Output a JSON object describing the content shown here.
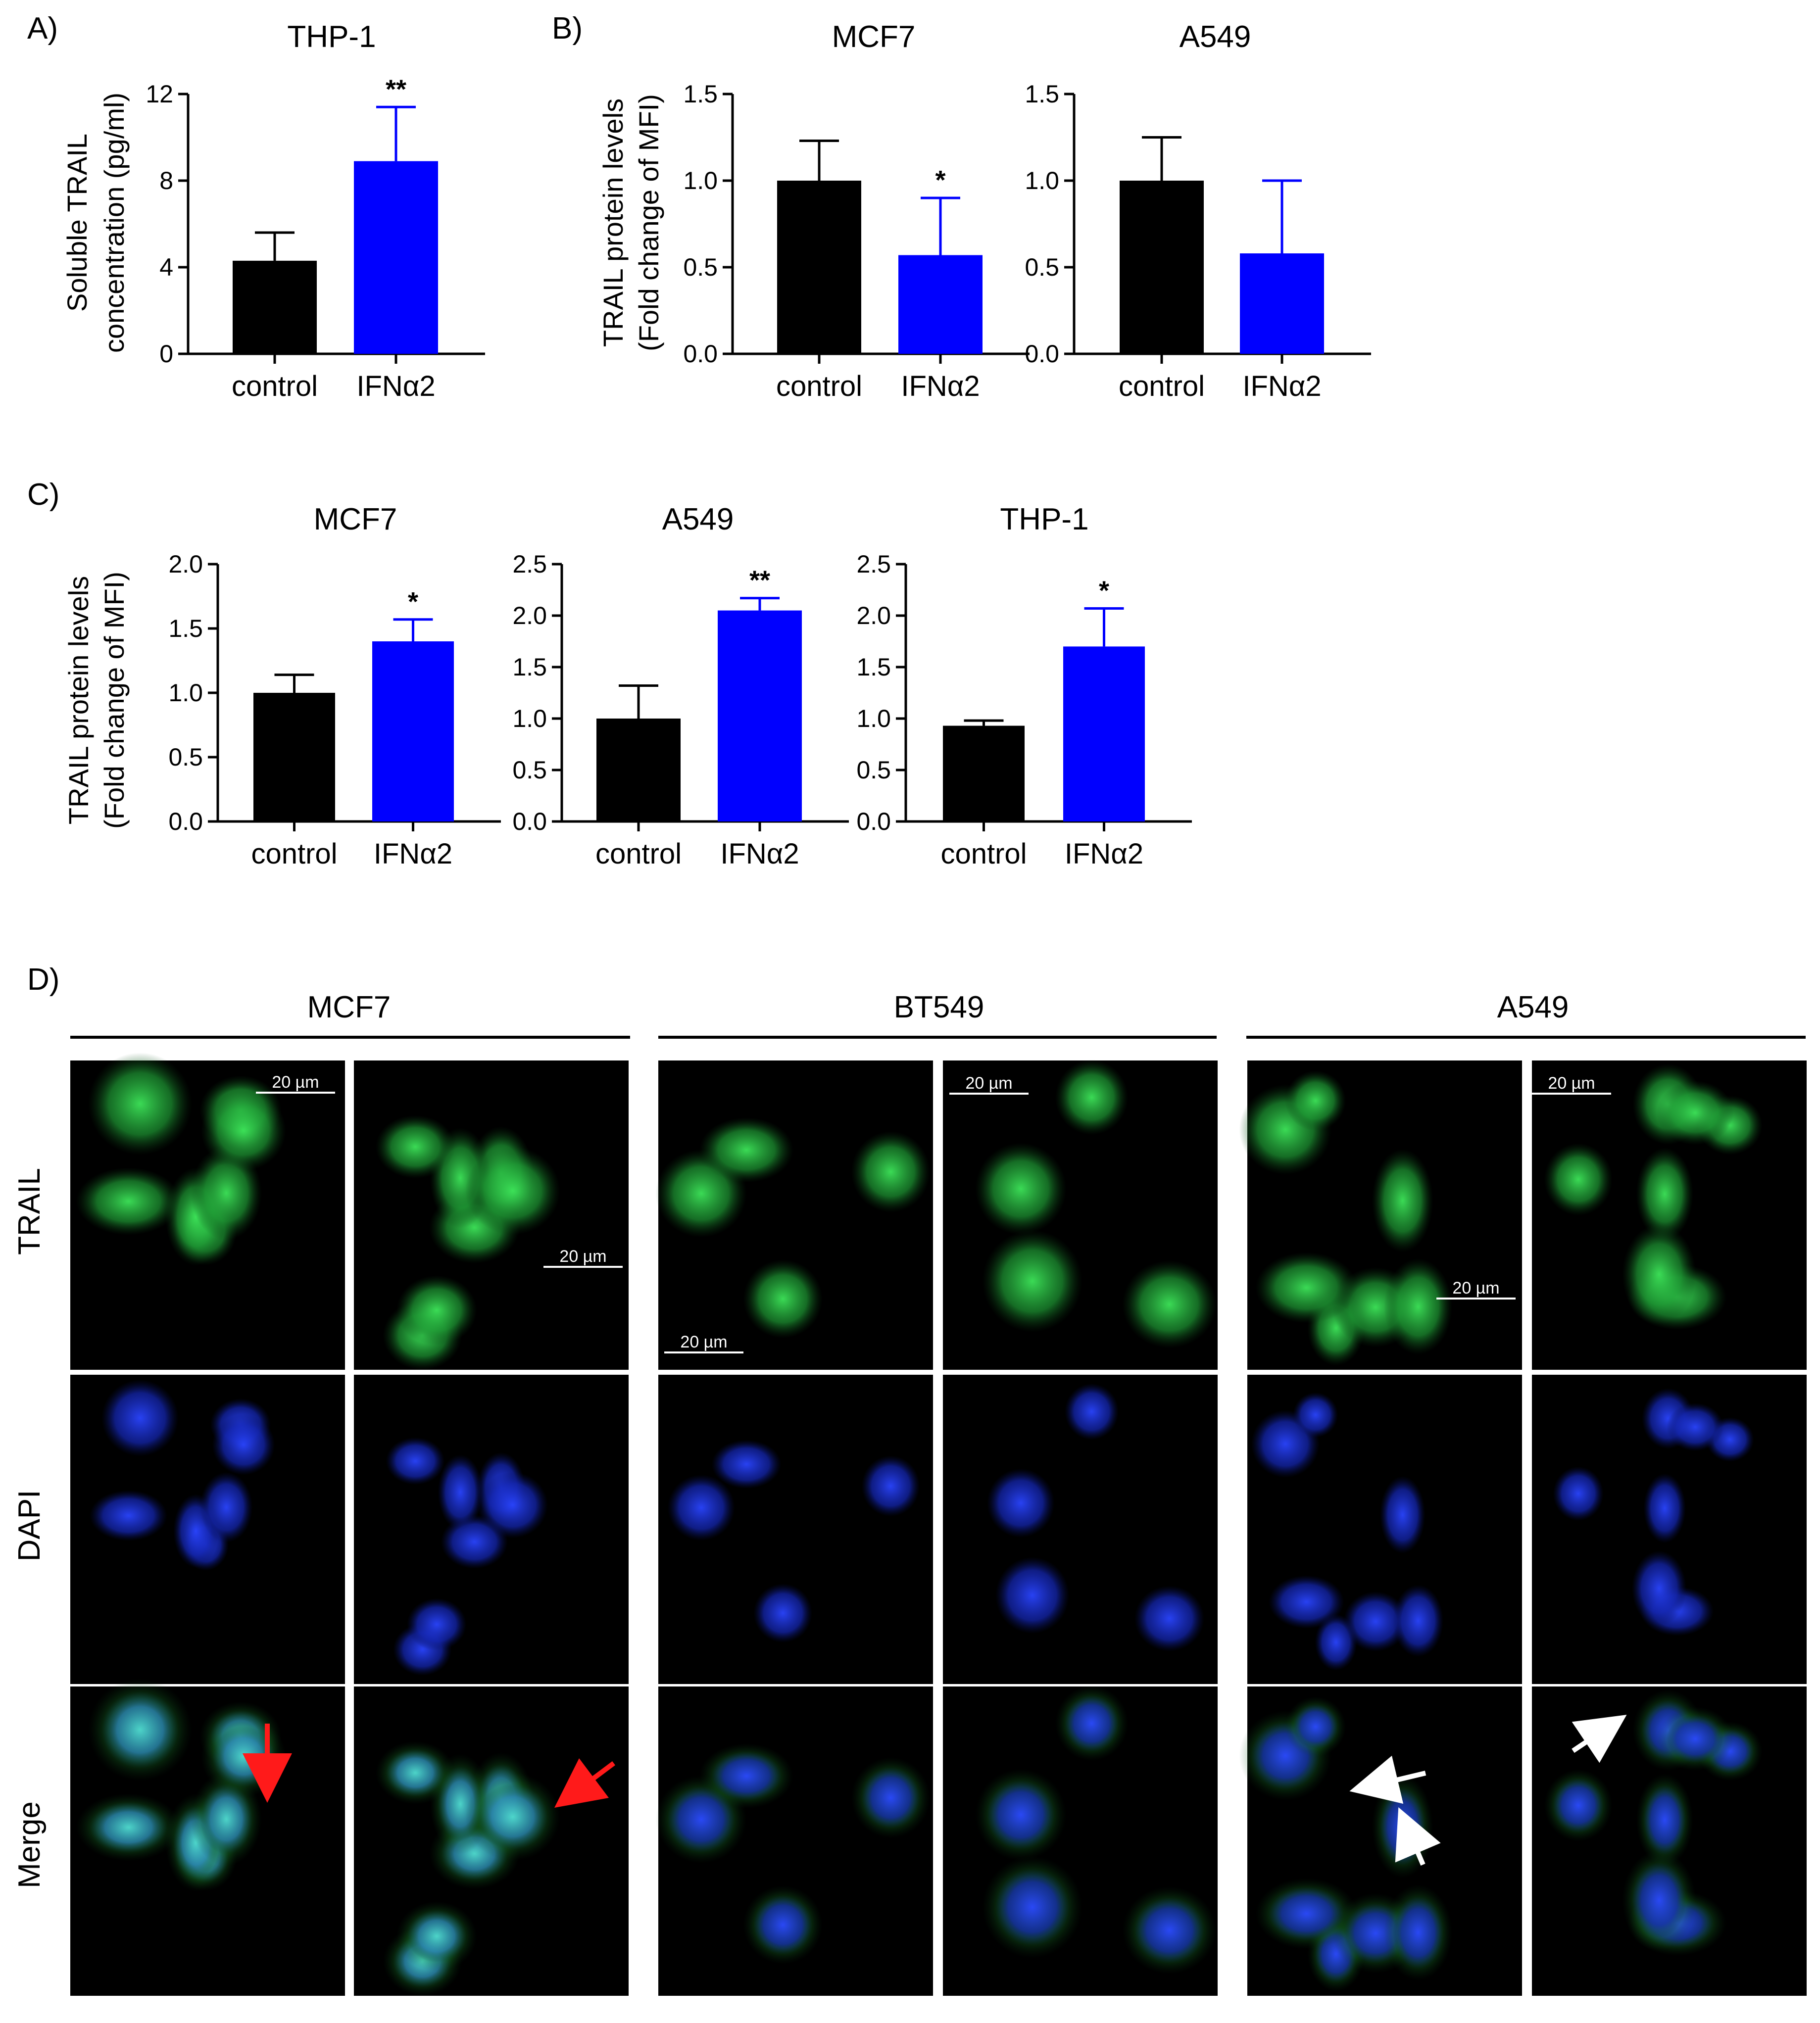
{
  "panel_labels": {
    "a": "A)",
    "b": "B)",
    "c": "C)",
    "d": "D)"
  },
  "colors": {
    "control": "#000000",
    "ifn": "#0000FF",
    "axis": "#000000",
    "green": "#22c83a",
    "blue": "#1430ff"
  },
  "chart_data": [
    {
      "id": "A",
      "type": "bar",
      "title": "THP-1",
      "ylabel_lines": [
        "Soluble TRAIL",
        "concentration (pg/ml)"
      ],
      "categories": [
        "control",
        "IFNα2"
      ],
      "values": [
        4.3,
        8.9
      ],
      "errors": [
        1.3,
        2.5
      ],
      "sig": [
        "",
        "**"
      ],
      "ylim": [
        0,
        12
      ],
      "yticks": [
        "0",
        "4",
        "8",
        "12"
      ]
    },
    {
      "id": "B1",
      "type": "bar",
      "title": "MCF7",
      "ylabel_lines": [
        "TRAIL protein levels",
        "(Fold change of MFI)"
      ],
      "categories": [
        "control",
        "IFNα2"
      ],
      "values": [
        1.0,
        0.57
      ],
      "errors": [
        0.23,
        0.33
      ],
      "sig": [
        "",
        "*"
      ],
      "ylim": [
        0,
        1.5
      ],
      "yticks": [
        "0.0",
        "0.5",
        "1.0",
        "1.5"
      ]
    },
    {
      "id": "B2",
      "type": "bar",
      "title": "A549",
      "ylabel_lines": [],
      "categories": [
        "control",
        "IFNα2"
      ],
      "values": [
        1.0,
        0.58
      ],
      "errors": [
        0.25,
        0.42
      ],
      "sig": [
        "",
        ""
      ],
      "ylim": [
        0,
        1.5
      ],
      "yticks": [
        "0.0",
        "0.5",
        "1.0",
        "1.5"
      ]
    },
    {
      "id": "C1",
      "type": "bar",
      "title": "MCF7",
      "ylabel_lines": [
        "TRAIL protein levels",
        "(Fold change of MFI)"
      ],
      "categories": [
        "control",
        "IFNα2"
      ],
      "values": [
        1.0,
        1.4
      ],
      "errors": [
        0.14,
        0.17
      ],
      "sig": [
        "",
        "*"
      ],
      "ylim": [
        0,
        2.0
      ],
      "yticks": [
        "0.0",
        "0.5",
        "1.0",
        "1.5",
        "2.0"
      ]
    },
    {
      "id": "C2",
      "type": "bar",
      "title": "A549",
      "ylabel_lines": [],
      "categories": [
        "control",
        "IFNα2"
      ],
      "values": [
        1.0,
        2.05
      ],
      "errors": [
        0.32,
        0.12
      ],
      "sig": [
        "",
        "**"
      ],
      "ylim": [
        0,
        2.5
      ],
      "yticks": [
        "0.0",
        "0.5",
        "1.0",
        "1.5",
        "2.0",
        "2.5"
      ]
    },
    {
      "id": "C3",
      "type": "bar",
      "title": "THP-1",
      "ylabel_lines": [],
      "categories": [
        "control",
        "IFNα2"
      ],
      "values": [
        0.93,
        1.7
      ],
      "errors": [
        0.05,
        0.37
      ],
      "sig": [
        "",
        "*"
      ],
      "ylim": [
        0,
        2.5
      ],
      "yticks": [
        "0.0",
        "0.5",
        "1.0",
        "1.5",
        "2.0",
        "2.5"
      ]
    }
  ],
  "microscopy": {
    "groups": [
      "MCF7",
      "BT549",
      "A549"
    ],
    "rows": [
      "TRAIL",
      "DAPI",
      "Merge"
    ],
    "scale_label": "20 µm"
  }
}
